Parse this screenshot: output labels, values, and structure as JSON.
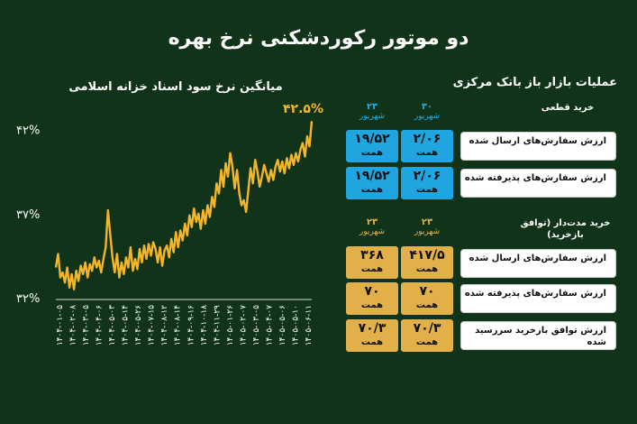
{
  "title": "دو موتور رکوردشکنی نرخ بهره",
  "chart_data": {
    "type": "line",
    "title": "میانگین نرخ سود اسناد خزانه اسلامی",
    "xlabel": "",
    "ylabel": "",
    "ylim": [
      32,
      43
    ],
    "yticks": [
      "۳۲%",
      "۳۷%",
      "۴۲%"
    ],
    "ytick_values": [
      32,
      37,
      42
    ],
    "xtick_labels": [
      "۱۴۰۴-۰۱-۰۵",
      "۱۴۰۴-۰۲-۰۸",
      "۱۴۰۴-۰۳-۰۵",
      "۱۴۰۴-۰۴-۰۶",
      "۱۴۰۴-۰۵-۰۳",
      "۱۴۰۴-۰۵-۱۴",
      "۱۴۰۴-۰۵-۲۶",
      "۱۴۰۴-۰۷-۱۵",
      "۱۴۰۴-۰۸-۱۲",
      "۱۴۰۴-۰۸-۱۴",
      "۱۴۰۴-۰۹-۱۶",
      "۱۴۰۴-۱۰-۱۸",
      "۱۴۰۴-۱۱-۲۹",
      "۱۴۰۵-۰۱-۲۶",
      "۱۴۰۵-۰۲-۰۷",
      "۱۴۰۵-۰۳-۰۵",
      "۱۴۰۵-۰۴-۰۷",
      "۱۴۰۵-۰۵-۰۶",
      "۱۴۰۵-۰۵-۱۰",
      "۱۴۰۵-۰۶-۱۱"
    ],
    "series": [
      {
        "color": "#f5b52a",
        "values": [
          33.8,
          34.6,
          33.2,
          33.5,
          32.9,
          33.8,
          32.6,
          33.4,
          32.5,
          33.6,
          33.0,
          33.9,
          33.4,
          34.1,
          33.2,
          34.0,
          33.6,
          34.4,
          33.8,
          34.2,
          33.5,
          34.3,
          35.0,
          37.2,
          35.8,
          34.4,
          33.5,
          34.6,
          33.2,
          34.1,
          33.4,
          34.4,
          33.8,
          35.0,
          33.6,
          34.3,
          33.7,
          34.9,
          34.1,
          35.1,
          34.3,
          35.2,
          34.5,
          35.3,
          34.9,
          34.1,
          35.0,
          33.9,
          34.8,
          35.1,
          34.4,
          35.5,
          34.7,
          35.9,
          35.0,
          36.0,
          35.4,
          36.4,
          35.7,
          36.9,
          36.2,
          37.3,
          36.5,
          37.0,
          36.1,
          37.2,
          36.4,
          37.5,
          36.8,
          38.0,
          37.4,
          38.8,
          38.2,
          39.6,
          38.6,
          40.0,
          39.2,
          40.6,
          39.8,
          38.5,
          39.6,
          38.2,
          37.5,
          37.8,
          37.1,
          38.4,
          39.7,
          38.8,
          40.2,
          39.5,
          38.6,
          39.2,
          39.9,
          39.4,
          38.9,
          39.6,
          39.0,
          39.8,
          40.2,
          39.5,
          40.1,
          39.4,
          40.3,
          39.7,
          40.5,
          39.9,
          40.6,
          40.1,
          40.8,
          41.2,
          40.4,
          41.6,
          41.0,
          42.5
        ]
      }
    ],
    "annotation": "۴۲.۵%"
  },
  "ops": {
    "title": "عملیات بازار باز بانک مرکزی",
    "sections": [
      {
        "name": "خرید قطعی",
        "color": "#21aee6",
        "cols": [
          {
            "day": "۳۰",
            "month": "شهریور"
          },
          {
            "day": "۲۳",
            "month": "شهریور"
          }
        ],
        "rows": [
          {
            "label": "ارزش سفارش‌های ارسال شده",
            "values": [
              "۲/۰۶",
              "۱۹/۵۲"
            ],
            "unit": "همت"
          },
          {
            "label": "ارزش سفارش‌های پذیرفته شده",
            "values": [
              "۲/۰۶",
              "۱۹/۵۲"
            ],
            "unit": "همت"
          }
        ]
      },
      {
        "name": "خرید مدت‌دار (توافق بازخرید)",
        "color": "#e3b14f",
        "cols": [
          {
            "day": "۲۳",
            "month": "شهریور"
          },
          {
            "day": "۲۳",
            "month": "شهریور"
          }
        ],
        "rows": [
          {
            "label": "ارزش سفارش‌های ارسال شده",
            "values": [
              "۴۱۷/۵",
              "۳۶۸"
            ],
            "unit": "همت"
          },
          {
            "label": "ارزش سفارش‌های پذیرفته شده",
            "values": [
              "۷۰",
              "۷۰"
            ],
            "unit": "همت"
          },
          {
            "label": "ارزش توافق بازخرید سررسید شده",
            "values": [
              "۷۰/۳",
              "۷۰/۳"
            ],
            "unit": "همت"
          }
        ]
      }
    ]
  }
}
